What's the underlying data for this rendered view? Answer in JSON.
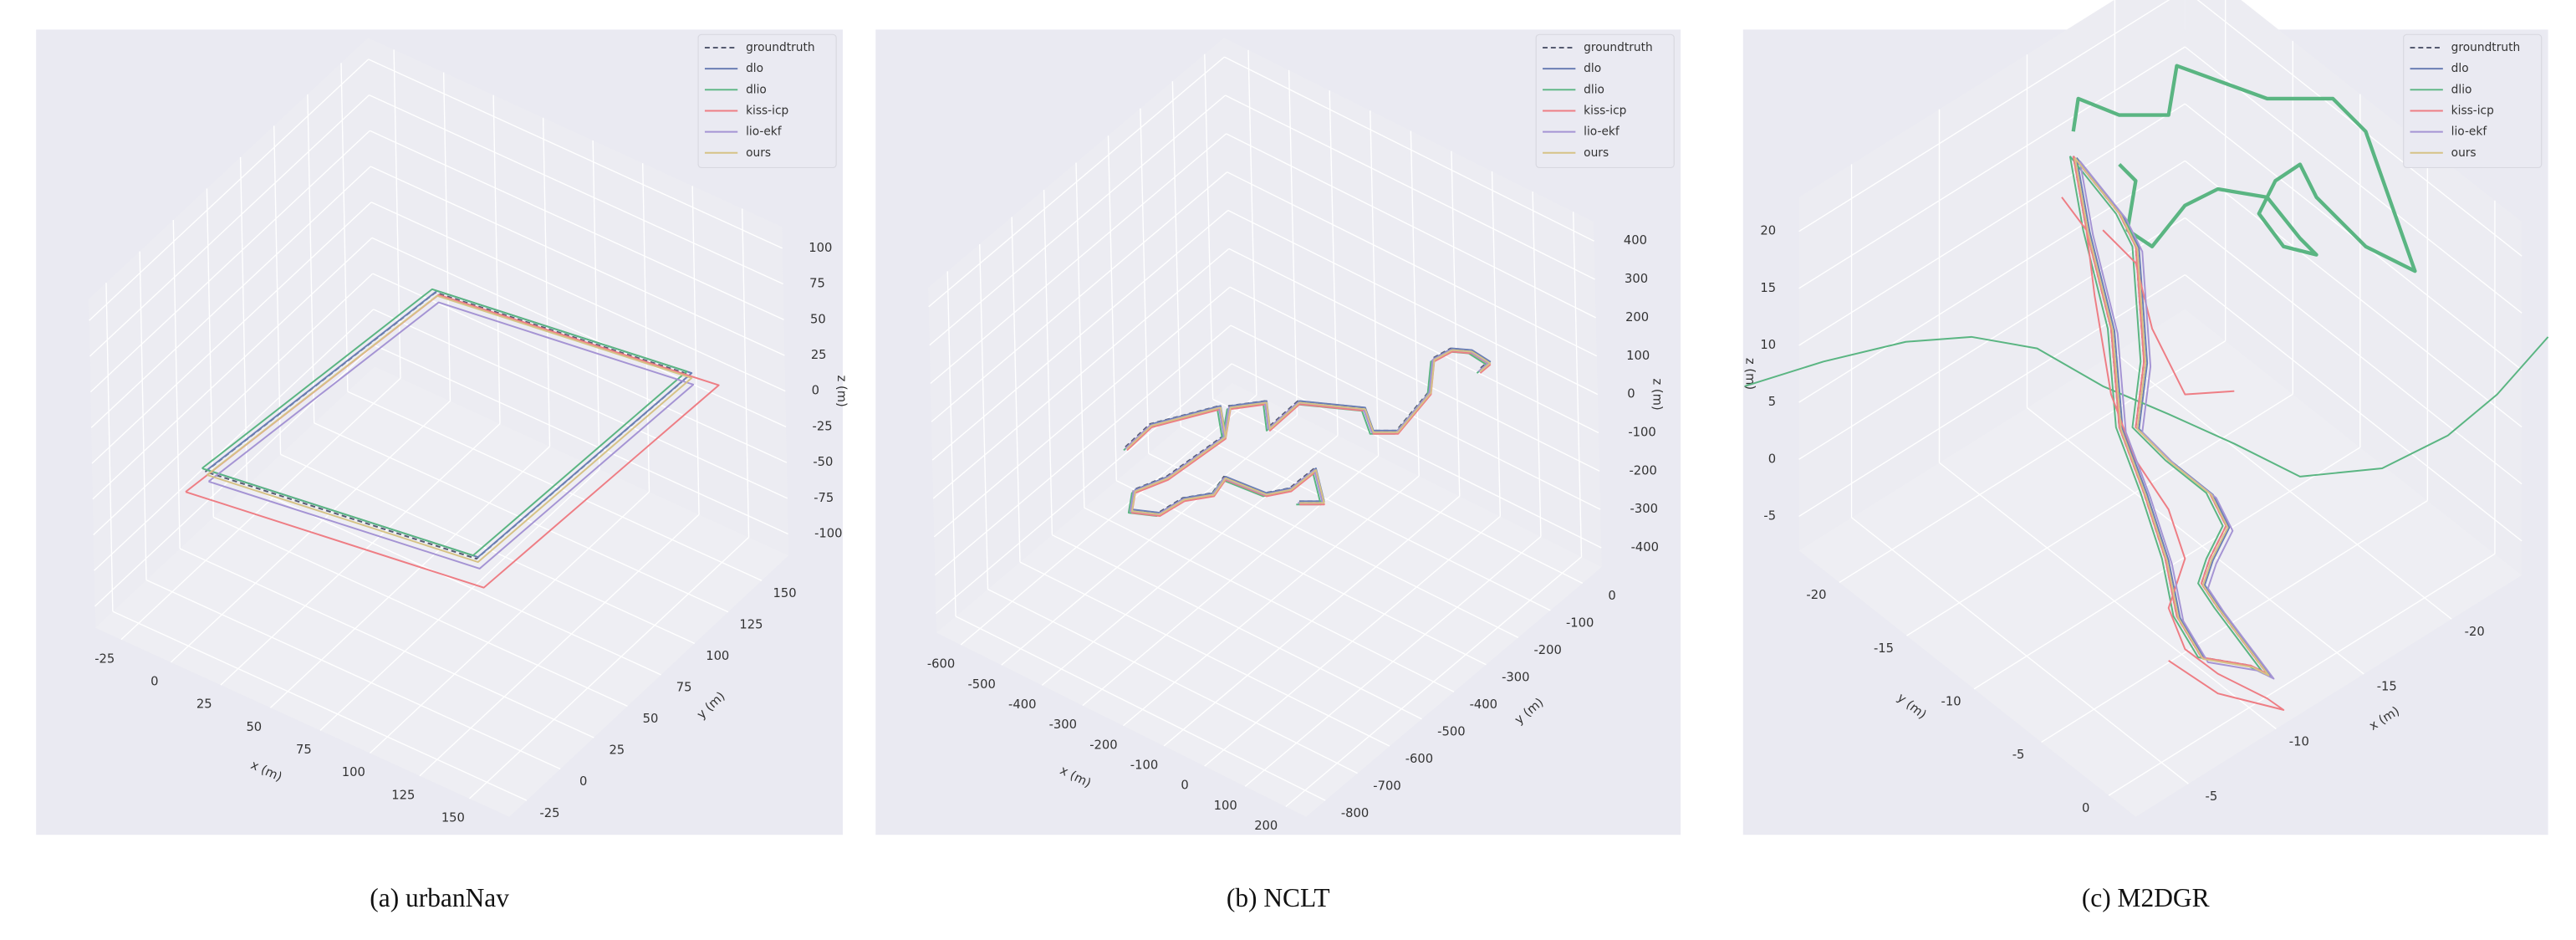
{
  "chart_data": [
    {
      "type": "line3d",
      "title": "(a) urbanNav",
      "xlabel": "x (m)",
      "ylabel": "y (m)",
      "zlabel": "z (m)",
      "xlim": [
        -38,
        170
      ],
      "xticks": [
        -25,
        0,
        25,
        50,
        75,
        100,
        125,
        150
      ],
      "ylim": [
        -38,
        170
      ],
      "yticks": [
        -25,
        0,
        25,
        50,
        75,
        100,
        125,
        150
      ],
      "zlim": [
        -115,
        115
      ],
      "zticks": [
        -100,
        -75,
        -50,
        -25,
        0,
        25,
        50,
        75,
        100
      ],
      "series": [
        {
          "name": "groundtruth",
          "color": "#555a70",
          "linestyle": "dashed"
        },
        {
          "name": "dlo",
          "color": "#6b7fb5"
        },
        {
          "name": "dlio",
          "color": "#5ab582"
        },
        {
          "name": "kiss-icp",
          "color": "#ee7d84"
        },
        {
          "name": "lio-ekf",
          "color": "#a594d4"
        },
        {
          "name": "ours",
          "color": "#d6c286"
        }
      ]
    },
    {
      "type": "line3d",
      "title": "(b) NCLT",
      "xlabel": "x (m)",
      "ylabel": "y (m)",
      "zlabel": "z (m)",
      "xlim": [
        -660,
        250
      ],
      "xticks": [
        -600,
        -500,
        -400,
        -300,
        -200,
        -100,
        0,
        100,
        200
      ],
      "ylim": [
        -860,
        60
      ],
      "yticks": [
        -800,
        -700,
        -600,
        -500,
        -400,
        -300,
        -200,
        -100,
        0
      ],
      "zlim": [
        -450,
        450
      ],
      "zticks": [
        -400,
        -300,
        -200,
        -100,
        0,
        100,
        200,
        300,
        400
      ],
      "series": [
        {
          "name": "groundtruth",
          "color": "#555a70",
          "linestyle": "dashed"
        },
        {
          "name": "dlo",
          "color": "#6b7fb5"
        },
        {
          "name": "dlio",
          "color": "#5ab582"
        },
        {
          "name": "kiss-icp",
          "color": "#ee7d84"
        },
        {
          "name": "lio-ekf",
          "color": "#a594d4"
        },
        {
          "name": "ours",
          "color": "#d6c286"
        }
      ]
    },
    {
      "type": "line3d",
      "title": "(c) M2DGR",
      "xlabel": "x (m)",
      "ylabel": "y (m)",
      "zlabel": "z (m)",
      "xlim": [
        -24,
        -2
      ],
      "xticks": [
        -20,
        -15,
        -10,
        -5
      ],
      "ylim": [
        -23,
        2
      ],
      "yticks": [
        -20,
        -15,
        -10,
        -5,
        0
      ],
      "zlim": [
        -8,
        23
      ],
      "zticks": [
        -5,
        0,
        5,
        10,
        15,
        20
      ],
      "series": [
        {
          "name": "groundtruth",
          "color": "#555a70",
          "linestyle": "dashed"
        },
        {
          "name": "dlo",
          "color": "#6b7fb5"
        },
        {
          "name": "dlio",
          "color": "#5ab582"
        },
        {
          "name": "kiss-icp",
          "color": "#ee7d84"
        },
        {
          "name": "lio-ekf",
          "color": "#a594d4"
        },
        {
          "name": "ours",
          "color": "#d6c286"
        }
      ]
    }
  ]
}
